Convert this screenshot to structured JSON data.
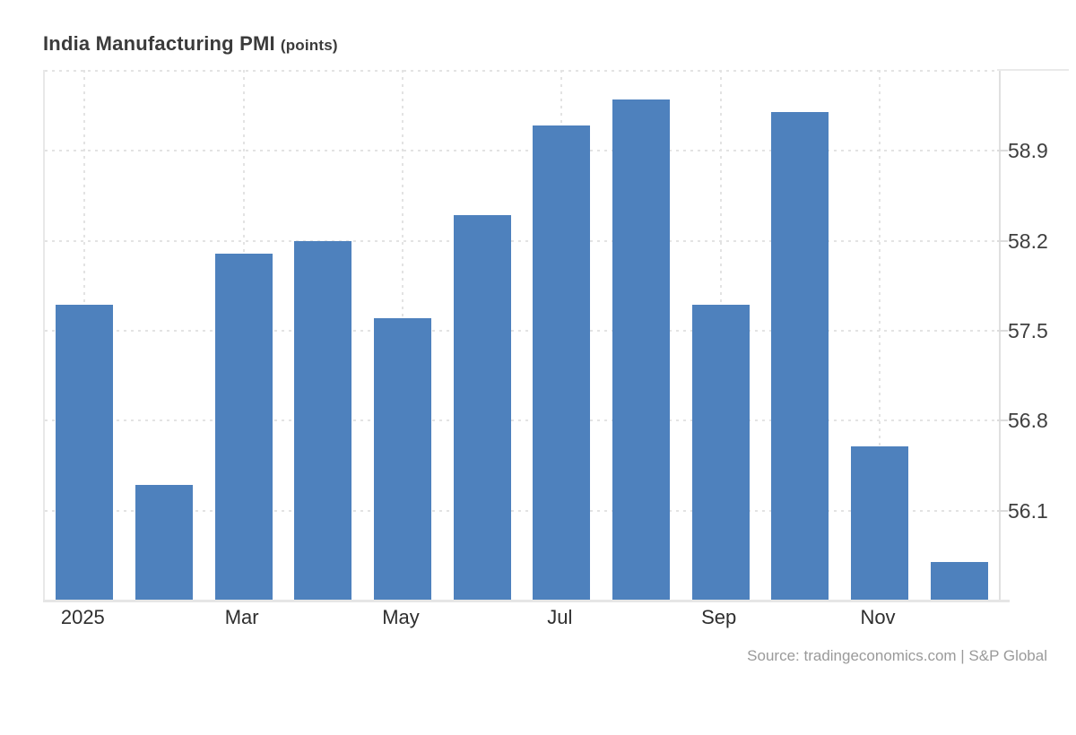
{
  "header": {
    "title": "India Manufacturing PMI",
    "unit_label": "(points)"
  },
  "footer": {
    "source_text": "Source: tradingeconomics.com | S&P Global"
  },
  "chart_data": {
    "type": "bar",
    "title": "India Manufacturing PMI",
    "ylabel": "points",
    "categories": [
      "Jan 2025",
      "Feb 2025",
      "Mar 2025",
      "Apr 2025",
      "May 2025",
      "Jun 2025",
      "Jul 2025",
      "Aug 2025",
      "Sep 2025",
      "Oct 2025",
      "Nov 2025",
      "Dec 2025"
    ],
    "values": [
      57.7,
      56.3,
      58.1,
      58.2,
      57.6,
      58.4,
      59.1,
      59.3,
      57.7,
      59.2,
      56.6,
      55.7
    ],
    "x_tick_labels": [
      "2025",
      "Mar",
      "May",
      "Jul",
      "Sep",
      "Nov"
    ],
    "x_tick_bar_indices": [
      0,
      2,
      4,
      6,
      8,
      10
    ],
    "y_tick_labels": [
      "58.9",
      "58.2",
      "57.5",
      "56.8",
      "56.1"
    ],
    "y_ticks": [
      58.9,
      58.2,
      57.5,
      56.8,
      56.1
    ],
    "ylim": [
      55.4,
      59.53
    ],
    "bar_color": "#4e81bd",
    "grid": "dotted",
    "legend_position": "none",
    "y_axis_side": "right"
  }
}
